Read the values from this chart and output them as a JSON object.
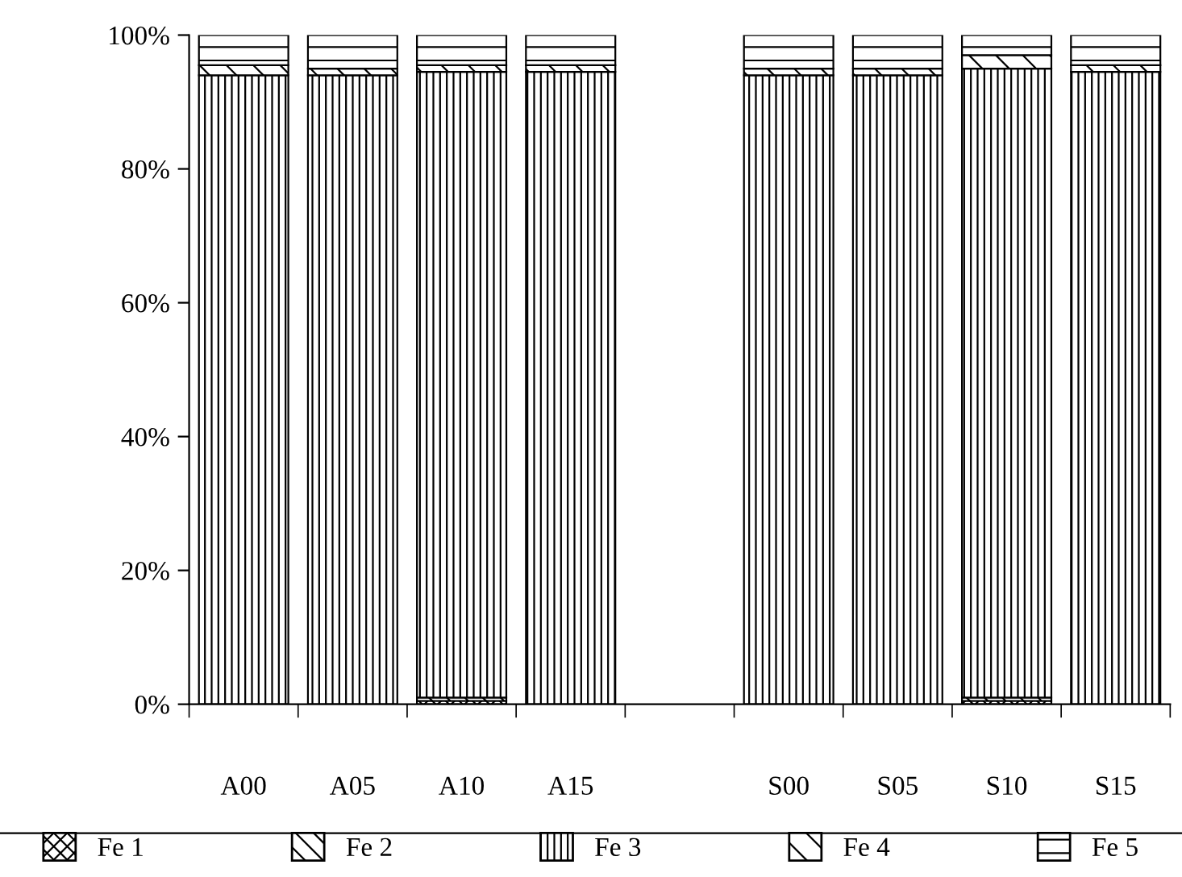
{
  "chart_data": {
    "type": "bar",
    "stacked": true,
    "categories": [
      "A00",
      "A05",
      "A10",
      "A15",
      null,
      "S00",
      "S05",
      "S10",
      "S15"
    ],
    "series": [
      {
        "name": "Fe 1",
        "color": "#000000",
        "values": [
          0,
          0,
          0.5,
          0,
          null,
          0,
          0,
          0.5,
          0
        ]
      },
      {
        "name": "Fe 2",
        "color": "#000000",
        "values": [
          0,
          0,
          0.5,
          0,
          null,
          0,
          0,
          0.5,
          0
        ]
      },
      {
        "name": "Fe 3",
        "color": "#000000",
        "values": [
          94,
          94,
          93.5,
          94.5,
          null,
          94,
          94,
          94,
          94.5
        ]
      },
      {
        "name": "Fe 4",
        "color": "#000000",
        "values": [
          1.5,
          1,
          1,
          1,
          null,
          1,
          1,
          2,
          1
        ]
      },
      {
        "name": "Fe 5",
        "color": "#000000",
        "values": [
          4.5,
          5,
          4.5,
          4.5,
          null,
          5,
          5,
          3,
          4.5
        ]
      }
    ],
    "ylim": [
      0,
      100
    ],
    "yticks": [
      {
        "value": 0,
        "label": "0%"
      },
      {
        "value": 20,
        "label": "20%"
      },
      {
        "value": 40,
        "label": "40%"
      },
      {
        "value": 60,
        "label": "60%"
      },
      {
        "value": 80,
        "label": "80%"
      },
      {
        "value": 100,
        "label": "100%"
      }
    ],
    "grid": false,
    "legend": "bottom"
  }
}
